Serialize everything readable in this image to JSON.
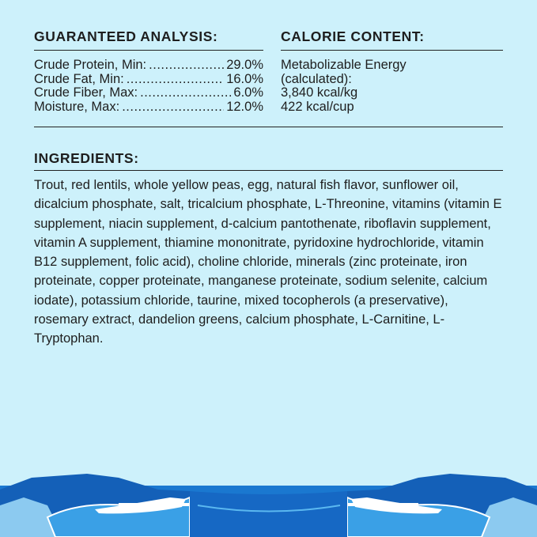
{
  "guaranteed_analysis": {
    "heading": "GUARANTEED ANALYSIS:",
    "rows": [
      {
        "label": "Crude Protein, Min:",
        "value": "29.0%"
      },
      {
        "label": "Crude Fat, Min:",
        "value": "16.0%"
      },
      {
        "label": "Crude Fiber, Max:",
        "value": "6.0%"
      },
      {
        "label": "Moisture, Max:",
        "value": "12.0%"
      }
    ]
  },
  "calorie_content": {
    "heading": "CALORIE CONTENT:",
    "lines": [
      "Metabolizable Energy",
      "(calculated):",
      "3,840 kcal/kg",
      "422 kcal/cup"
    ]
  },
  "ingredients": {
    "heading": "INGREDIENTS:",
    "text": "Trout, red lentils, whole yellow peas, egg, natural fish flavor, sunflower oil, dicalcium phosphate, salt, tricalcium phosphate, L-Threonine, vitamins (vitamin E supplement, niacin supplement, d-calcium pantothenate, riboflavin supplement, vitamin A supplement, thiamine mononitrate, pyridoxine hydrochloride, vitamin B12 supplement, folic acid), choline chloride, minerals (zinc proteinate, iron proteinate, copper proteinate, manganese proteinate, sodium selenite, calcium iodate), potassium chloride, taurine, mixed tocopherols (a preservative), rosemary extract, dandelion greens, calcium phosphate, L-Carnitine, L-Tryptophan."
  },
  "colors": {
    "background": "#cdf1fb",
    "water": "#1a78d0",
    "ice": "#ffffff"
  }
}
